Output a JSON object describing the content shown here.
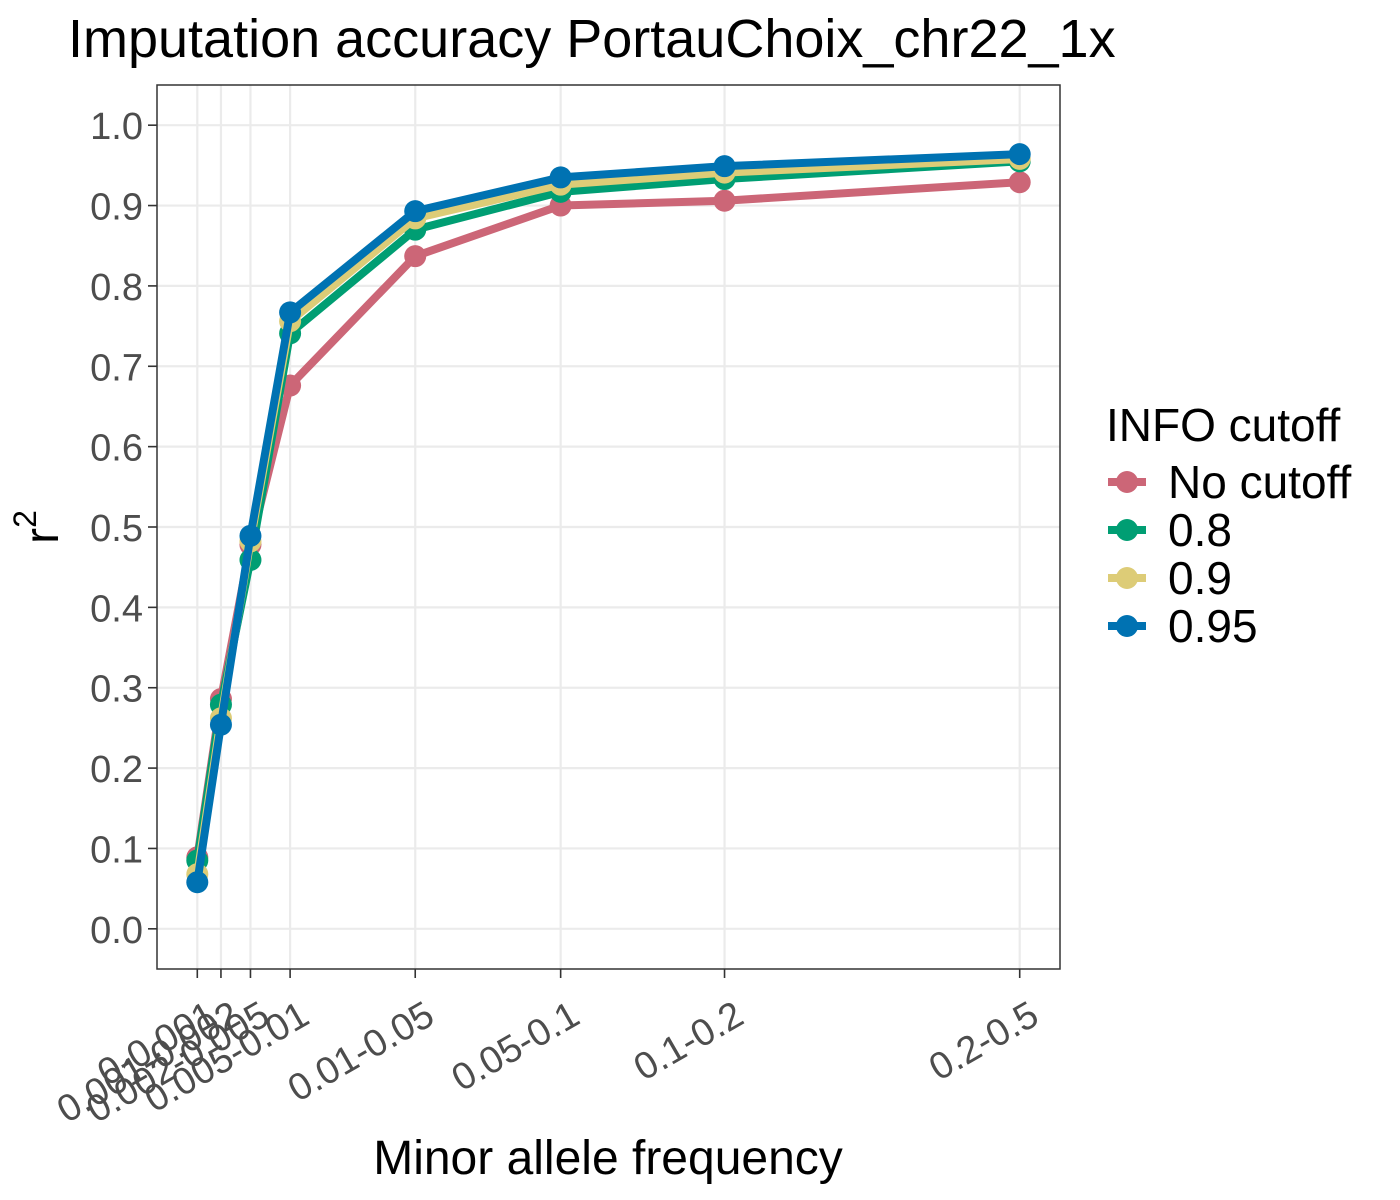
{
  "chart_data": {
    "type": "line",
    "title": "Imputation accuracy PortauChoix_chr22_1x",
    "xlabel": "Minor allele frequency",
    "ylabel": "r",
    "ylabel_superscript": "2",
    "categories": [
      "0-0.001",
      "0.001-0.002",
      "0.002-0.005",
      "0.005-0.01",
      "0.01-0.05",
      "0.05-0.1",
      "0.1-0.2",
      "0.2-0.5"
    ],
    "x_positions": [
      0.0005,
      0.0015,
      0.0035,
      0.0075,
      0.03,
      0.075,
      0.15,
      0.35
    ],
    "x_scale": "sqrt",
    "ylim": [
      -0.05,
      1.05
    ],
    "yticks": [
      "0.0",
      "0.1",
      "0.2",
      "0.3",
      "0.4",
      "0.5",
      "0.6",
      "0.7",
      "0.8",
      "0.9",
      "1.0"
    ],
    "grid": true,
    "legend_title": "INFO cutoff",
    "legend_position": "right",
    "series": [
      {
        "name": "No cutoff",
        "color": "#CC6677",
        "values": [
          0.089,
          0.286,
          0.478,
          0.676,
          0.837,
          0.9,
          0.906,
          0.929
        ]
      },
      {
        "name": "0.8",
        "color": "#009E73",
        "values": [
          0.085,
          0.279,
          0.459,
          0.741,
          0.87,
          0.917,
          0.933,
          0.955
        ]
      },
      {
        "name": "0.9",
        "color": "#DDCC77",
        "values": [
          0.068,
          0.262,
          0.482,
          0.756,
          0.884,
          0.926,
          0.941,
          0.958
        ]
      },
      {
        "name": "0.95",
        "color": "#0072B2",
        "values": [
          0.058,
          0.254,
          0.489,
          0.767,
          0.893,
          0.935,
          0.949,
          0.964
        ]
      }
    ]
  }
}
